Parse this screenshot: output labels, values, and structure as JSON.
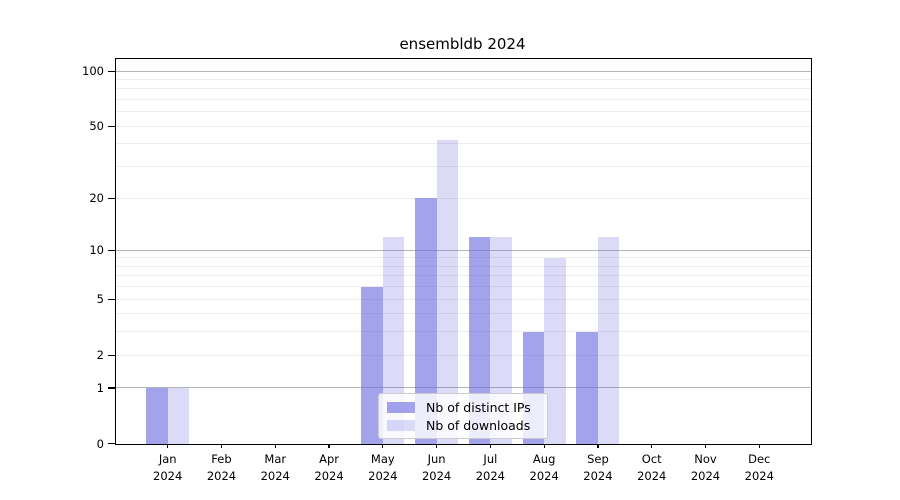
{
  "chart_data": {
    "type": "bar",
    "title": "ensembldb 2024",
    "categories": [
      "Jan",
      "Feb",
      "Mar",
      "Apr",
      "May",
      "Jun",
      "Jul",
      "Aug",
      "Sep",
      "Oct",
      "Nov",
      "Dec"
    ],
    "year_label": "2024",
    "series": [
      {
        "name": "Nb of distinct IPs",
        "color": "rgba(106,106,224,0.62)",
        "values": [
          1,
          0,
          0,
          0,
          6,
          20,
          12,
          3,
          3,
          0,
          0,
          0
        ]
      },
      {
        "name": "Nb of downloads",
        "color": "rgba(106,106,224,0.24)",
        "values": [
          1,
          0,
          0,
          0,
          12,
          42,
          12,
          9,
          12,
          0,
          0,
          0
        ]
      }
    ],
    "scale": "log1p",
    "ylim": [
      0,
      115
    ],
    "yticks": [
      0,
      1,
      2,
      5,
      10,
      20,
      50,
      100
    ],
    "major_gridlines": [
      1,
      10,
      100
    ],
    "minor_gridlines": [
      2,
      3,
      4,
      5,
      6,
      7,
      8,
      9,
      20,
      30,
      40,
      50,
      60,
      70,
      80,
      90
    ],
    "grid": true,
    "legend_position": "lower-center"
  },
  "colors": {
    "background": "#ffffff",
    "spine": "#000000",
    "grid_major": "#b5b5b5",
    "grid_minor": "#ececec",
    "tick_label": "#000000",
    "legend_border": "#cccccc",
    "legend_background": "rgba(255,255,255,0.8)"
  }
}
